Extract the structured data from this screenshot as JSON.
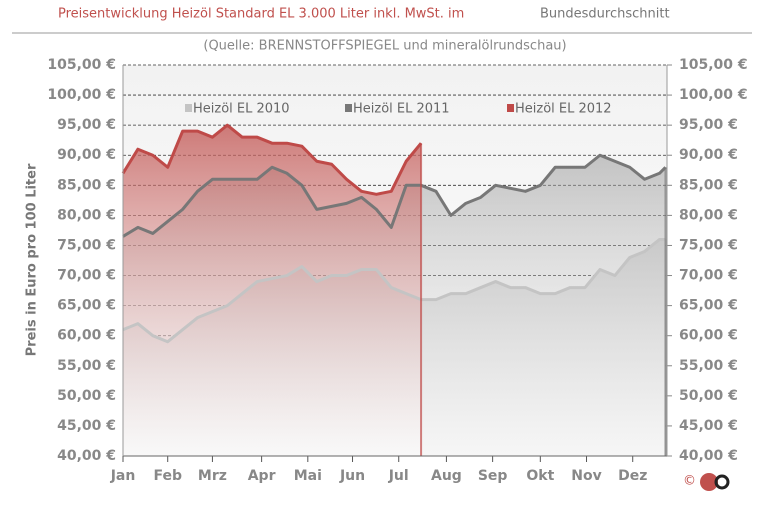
{
  "chart_data": {
    "type": "area",
    "title": "Preisentwicklung Heizöl Standard EL 3.000 Liter inkl. MwSt. im",
    "title_suffix": "Bundesdurchschnitt",
    "subtitle": "(Quelle: BRENNSTOFFSPIEGEL  und mineralölrundschau)",
    "y_label": "Preis in Euro pro 100 Liter",
    "copyright": "©",
    "x": [
      0,
      10,
      20,
      30,
      40,
      50,
      60,
      70,
      80,
      90,
      100,
      110,
      120,
      130,
      140,
      150,
      160,
      170,
      180,
      190,
      200,
      210,
      220,
      230,
      240,
      250,
      260,
      270,
      280,
      290,
      300,
      310,
      320,
      330,
      340,
      350,
      360,
      364
    ],
    "xlim": [
      0,
      365
    ],
    "xticks": [
      {
        "value": 0,
        "label": "Jan"
      },
      {
        "value": 30,
        "label": "Feb"
      },
      {
        "value": 60,
        "label": "Mrz"
      },
      {
        "value": 93,
        "label": "Apr"
      },
      {
        "value": 124,
        "label": "Mai"
      },
      {
        "value": 154,
        "label": "Jun"
      },
      {
        "value": 185,
        "label": "Jul"
      },
      {
        "value": 217,
        "label": "Aug"
      },
      {
        "value": 248,
        "label": "Sep"
      },
      {
        "value": 280,
        "label": "Okt"
      },
      {
        "value": 311,
        "label": "Nov"
      },
      {
        "value": 342,
        "label": "Dez"
      }
    ],
    "ylim": [
      40,
      105
    ],
    "yticks": [
      {
        "value": 40,
        "label": "40,00 €"
      },
      {
        "value": 45,
        "label": "45,00 €"
      },
      {
        "value": 50,
        "label": "50,00 €"
      },
      {
        "value": 55,
        "label": "55,00 €"
      },
      {
        "value": 60,
        "label": "60,00 €"
      },
      {
        "value": 65,
        "label": "65,00 €"
      },
      {
        "value": 70,
        "label": "70,00 €"
      },
      {
        "value": 75,
        "label": "75,00 €"
      },
      {
        "value": 80,
        "label": "80,00 €"
      },
      {
        "value": 85,
        "label": "85,00 €"
      },
      {
        "value": 90,
        "label": "90,00 €"
      },
      {
        "value": 95,
        "label": "95,00 €"
      },
      {
        "value": 100,
        "label": "100,00 €"
      },
      {
        "value": 105,
        "label": "105,00 €"
      }
    ],
    "y2lim": [
      40,
      105
    ],
    "y2ticks": [
      {
        "value": 40,
        "label": "40,00 €"
      },
      {
        "value": 45,
        "label": "45,00 €"
      },
      {
        "value": 50,
        "label": "50,00 €"
      },
      {
        "value": 55,
        "label": "55,00 €"
      },
      {
        "value": 60,
        "label": "60,00 €"
      },
      {
        "value": 65,
        "label": "65,00 €"
      },
      {
        "value": 70,
        "label": "70,00 €"
      },
      {
        "value": 75,
        "label": "75,00 €"
      },
      {
        "value": 80,
        "label": "80,00 €"
      },
      {
        "value": 85,
        "label": "85,00 €"
      },
      {
        "value": 90,
        "label": "90,00 €"
      },
      {
        "value": 95,
        "label": "95,00 €"
      },
      {
        "value": 100,
        "label": "100,00 €"
      },
      {
        "value": 105,
        "label": "105,00 €"
      }
    ],
    "grid": true,
    "series": [
      {
        "name": "Heizöl EL 2010",
        "color": "#c4c4c4",
        "values": [
          61,
          62,
          60,
          59,
          61,
          63,
          64,
          65,
          67,
          69,
          69.5,
          70,
          71.5,
          69,
          70,
          70,
          71,
          71,
          68,
          67,
          66,
          66,
          67,
          67,
          68,
          69,
          68,
          68,
          67,
          67,
          68,
          68,
          71,
          70,
          73,
          74,
          76,
          76
        ]
      },
      {
        "name": "Heizöl EL 2011",
        "color": "#777777",
        "values": [
          76.5,
          78,
          77,
          79,
          81,
          84,
          86,
          86,
          86,
          86,
          88,
          87,
          85,
          81,
          81.5,
          82,
          83,
          81,
          78,
          85,
          85,
          84,
          80,
          82,
          83,
          85,
          84.5,
          84,
          85,
          88,
          88,
          88,
          90,
          89,
          88,
          86,
          87,
          88
        ]
      },
      {
        "name": "Heizöl EL 2012",
        "color": "#bf4a48",
        "values": [
          87,
          91,
          90,
          88,
          94,
          94,
          93,
          95,
          93,
          93,
          92,
          92,
          91.5,
          89,
          88.5,
          86,
          84,
          83.5,
          84,
          89,
          92,
          null,
          null,
          null,
          null,
          null,
          null,
          null,
          null,
          null,
          null,
          null,
          null,
          null,
          null,
          null,
          null,
          null
        ]
      }
    ]
  }
}
